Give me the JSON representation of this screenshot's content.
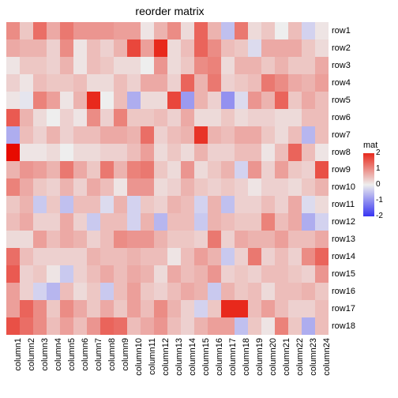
{
  "title": "reorder matrix",
  "type": "heatmap",
  "rows": [
    "row1",
    "row2",
    "row3",
    "row4",
    "row5",
    "row6",
    "row7",
    "row8",
    "row9",
    "row10",
    "row11",
    "row12",
    "row13",
    "row14",
    "row15",
    "row16",
    "row17",
    "row18"
  ],
  "columns": [
    "column1",
    "column2",
    "column3",
    "column4",
    "column5",
    "column6",
    "column7",
    "column8",
    "column9",
    "column10",
    "column11",
    "column12",
    "column13",
    "column14",
    "column15",
    "column16",
    "column17",
    "column18",
    "column19",
    "column20",
    "column21",
    "column22",
    "column23",
    "column24"
  ],
  "values": [
    [
      1.0,
      0.4,
      1.3,
      0.7,
      1.2,
      0.9,
      0.9,
      0.9,
      0.8,
      0.8,
      0.1,
      0.6,
      1.0,
      0.2,
      1.4,
      0.6,
      -0.5,
      1.2,
      0.2,
      0.4,
      0.0,
      0.5,
      -0.3,
      0.1
    ],
    [
      0.7,
      0.6,
      0.6,
      0.3,
      1.0,
      0.1,
      0.5,
      0.3,
      0.6,
      1.7,
      0.8,
      2.0,
      0.2,
      0.5,
      1.4,
      1.0,
      0.5,
      0.4,
      -0.2,
      0.7,
      0.7,
      0.7,
      0.4,
      0.2
    ],
    [
      0.1,
      0.4,
      0.4,
      0.3,
      0.6,
      0.1,
      0.5,
      0.4,
      0.2,
      0.2,
      0.0,
      0.9,
      0.2,
      0.4,
      1.0,
      1.1,
      0.2,
      0.6,
      0.6,
      0.4,
      0.6,
      0.4,
      0.4,
      0.7
    ],
    [
      0.3,
      0.1,
      0.5,
      0.4,
      0.4,
      0.5,
      0.2,
      0.2,
      0.5,
      0.3,
      0.7,
      0.7,
      0.3,
      1.4,
      0.6,
      1.2,
      0.3,
      0.4,
      0.5,
      1.2,
      1.0,
      0.7,
      0.6,
      0.8
    ],
    [
      0.1,
      -0.1,
      1.1,
      0.8,
      0.1,
      0.6,
      2.0,
      0.0,
      0.5,
      -0.7,
      0.2,
      0.2,
      1.7,
      -0.9,
      0.6,
      0.3,
      -1.0,
      -0.2,
      0.9,
      0.6,
      1.4,
      0.4,
      0.7,
      0.5
    ],
    [
      1.5,
      0.6,
      0.2,
      0.0,
      0.3,
      0.1,
      1.0,
      0.3,
      1.1,
      0.4,
      0.4,
      0.5,
      0.3,
      0.7,
      0.2,
      0.2,
      0.4,
      0.2,
      0.3,
      0.3,
      0.2,
      0.2,
      0.5,
      0.5
    ],
    [
      -0.7,
      0.5,
      0.3,
      0.6,
      0.3,
      0.5,
      0.5,
      0.7,
      0.7,
      0.6,
      1.3,
      0.3,
      0.5,
      0.6,
      1.9,
      0.6,
      0.5,
      0.7,
      0.7,
      0.4,
      0.2,
      0.5,
      -0.6,
      0.5
    ],
    [
      2.3,
      0.1,
      0.1,
      0.2,
      0.0,
      0.2,
      0.2,
      0.3,
      0.3,
      0.5,
      0.8,
      0.2,
      0.4,
      0.2,
      0.6,
      0.3,
      0.3,
      0.5,
      0.5,
      0.1,
      0.5,
      1.4,
      0.5,
      0.1
    ],
    [
      0.6,
      0.9,
      0.8,
      0.6,
      1.2,
      0.7,
      0.4,
      1.2,
      0.6,
      1.1,
      1.2,
      0.4,
      0.2,
      0.9,
      0.2,
      0.4,
      0.6,
      -0.3,
      0.9,
      0.3,
      0.8,
      0.4,
      0.3,
      1.6
    ],
    [
      1.1,
      0.7,
      0.4,
      0.3,
      0.6,
      0.3,
      0.7,
      0.5,
      0.1,
      0.9,
      0.9,
      0.2,
      0.3,
      0.6,
      0.4,
      0.3,
      0.4,
      0.3,
      0.1,
      0.3,
      0.3,
      0.2,
      0.4,
      0.6
    ],
    [
      0.4,
      0.6,
      -0.4,
      0.4,
      -0.5,
      0.5,
      0.5,
      -0.2,
      0.6,
      -0.3,
      0.4,
      0.3,
      0.6,
      0.5,
      -0.3,
      0.6,
      -0.5,
      0.3,
      0.3,
      0.5,
      0.3,
      0.7,
      -0.2,
      0.2
    ],
    [
      0.5,
      0.7,
      0.3,
      0.3,
      0.7,
      0.3,
      -0.4,
      0.5,
      0.5,
      -0.3,
      0.6,
      -0.6,
      0.5,
      0.5,
      -0.4,
      0.6,
      0.5,
      0.4,
      0.4,
      1.1,
      0.5,
      0.7,
      -0.7,
      -0.3
    ],
    [
      0.2,
      0.2,
      0.8,
      0.5,
      0.7,
      0.6,
      0.3,
      0.5,
      1.0,
      0.9,
      0.9,
      0.6,
      0.4,
      0.4,
      0.3,
      1.2,
      0.3,
      0.7,
      0.6,
      0.6,
      0.8,
      0.5,
      0.5,
      0.7
    ],
    [
      1.3,
      0.5,
      0.3,
      0.3,
      0.3,
      0.3,
      0.6,
      0.5,
      0.5,
      0.6,
      0.5,
      0.5,
      0.1,
      0.5,
      0.8,
      0.6,
      -0.4,
      0.3,
      1.2,
      0.3,
      0.5,
      0.3,
      1.0,
      1.4
    ],
    [
      1.5,
      0.3,
      0.4,
      0.1,
      -0.4,
      0.3,
      0.5,
      0.7,
      0.5,
      0.7,
      0.6,
      0.2,
      0.7,
      0.5,
      0.6,
      0.9,
      0.3,
      0.4,
      0.3,
      0.5,
      0.5,
      0.4,
      0.3,
      0.9
    ],
    [
      0.8,
      0.3,
      -0.3,
      -0.6,
      0.5,
      0.2,
      0.4,
      -0.4,
      0.5,
      0.8,
      0.4,
      0.3,
      0.5,
      0.7,
      0.6,
      -0.4,
      0.6,
      0.4,
      0.5,
      0.2,
      0.5,
      0.5,
      0.6,
      0.4
    ],
    [
      0.8,
      1.4,
      1.0,
      0.4,
      1.0,
      0.7,
      0.4,
      0.7,
      0.4,
      0.8,
      0.5,
      1.0,
      0.6,
      0.3,
      -0.3,
      0.4,
      2.0,
      2.0,
      0.5,
      0.8,
      0.5,
      0.3,
      0.3,
      0.5
    ],
    [
      1.6,
      1.3,
      1.0,
      0.5,
      0.8,
      0.5,
      0.9,
      1.4,
      1.3,
      0.5,
      0.7,
      0.9,
      0.5,
      0.3,
      0.6,
      0.8,
      0.8,
      -0.5,
      0.4,
      0.1,
      1.1,
      0.4,
      -0.7,
      0.5
    ]
  ],
  "legend": {
    "title": "mat",
    "ticks": [
      2,
      1,
      0,
      -1,
      -2
    ],
    "min": -2,
    "max": 2
  },
  "colors": {
    "low": "#3734f2",
    "mid": "#eeeeee",
    "high": "#e8291c",
    "background": "#ffffff"
  },
  "title_fontsize": 14,
  "label_fontsize": 11,
  "legend_fontsize": 10
}
